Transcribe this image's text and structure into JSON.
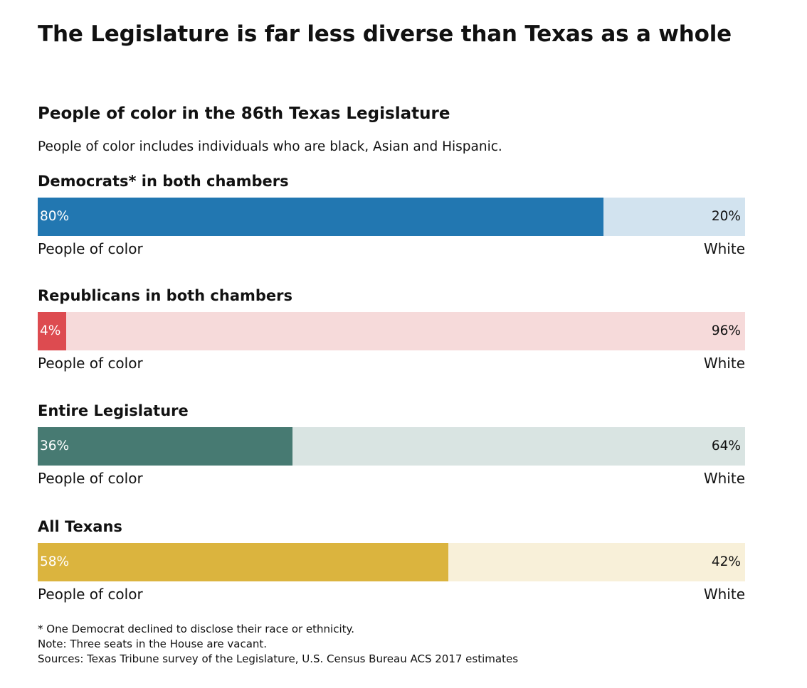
{
  "headline": "The Legislature is far less diverse than Texas as a whole",
  "chart_data": {
    "type": "bar",
    "orientation": "horizontal",
    "stacked": true,
    "normalized_to": 100,
    "title": "People of color in the 86th Texas Legislature",
    "subtitle": "People of color includes individuals who are black, Asian and Hispanic.",
    "categories": [
      "Democrats* in both chambers",
      "Republicans in both chambers",
      "Entire Legislature",
      "All Texans"
    ],
    "series": [
      {
        "name": "People of color",
        "values": [
          80,
          4,
          36,
          58
        ]
      },
      {
        "name": "White",
        "values": [
          20,
          96,
          64,
          42
        ]
      }
    ],
    "value_labels": {
      "people_of_color": [
        "80%",
        "4%",
        "36%",
        "58%"
      ],
      "white": [
        "20%",
        "96%",
        "64%",
        "42%"
      ]
    },
    "left_axis_label": "People of color",
    "right_axis_label": "White",
    "colors": {
      "people_of_color": [
        "#2277b1",
        "#dd4b50",
        "#477a72",
        "#dbb43e"
      ],
      "white": [
        "#d2e3ef",
        "#f6dada",
        "#d9e4e2",
        "#f8f0d9"
      ]
    },
    "grid": false,
    "legend": "none",
    "xlim": [
      0,
      100
    ]
  },
  "footnotes": [
    "* One Democrat declined to disclose their race or ethnicity.",
    "Note: Three seats in the House are vacant.",
    "Sources: Texas Tribune survey of the Legislature, U.S. Census Bureau ACS 2017 estimates"
  ]
}
